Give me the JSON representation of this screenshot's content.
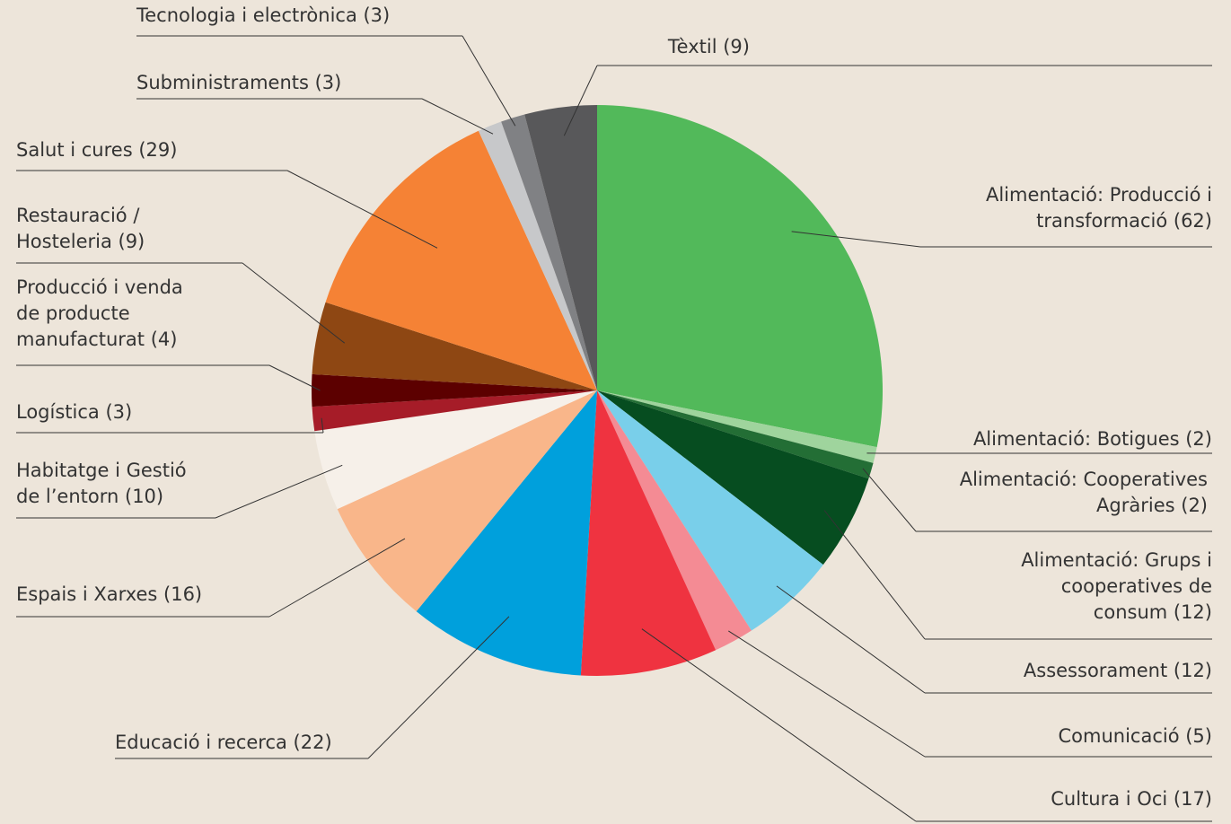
{
  "chart_data": {
    "type": "pie",
    "categories": [
      "Alimentació: Producció i\ntransformació (62)",
      "Alimentació: Botigues (2)",
      "Alimentació: Cooperatives\nAgràries (2)",
      "Alimentació: Grups i\ncooperatives de\nconsum (12)",
      "Assessorament (12)",
      "Comunicació (5)",
      "Cultura i Oci (17)",
      "Educació i recerca (22)",
      "Espais i Xarxes (16)",
      "Habitatge i Gestió\nde l’entorn (10)",
      "Logística (3)",
      "Producció i venda\nde producte\nmanufacturat (4)",
      "Restauració  /\nHosteleria (9)",
      "Salut i cures (29)",
      "Subministraments (3)",
      "Tecnologia i electrònica (3)",
      "Tèxtil (9)"
    ],
    "values": [
      62,
      2,
      2,
      12,
      12,
      5,
      17,
      22,
      16,
      10,
      3,
      4,
      9,
      29,
      3,
      3,
      9
    ],
    "colors": [
      "#52b95a",
      "#9fd49d",
      "#236e35",
      "#064d20",
      "#79cfea",
      "#f48b94",
      "#ef3340",
      "#00a0dc",
      "#f9b68a",
      "#f6f0e9",
      "#a61c28",
      "#5c0000",
      "#8e4713",
      "#f58235",
      "#c7c8ca",
      "#808184",
      "#58585a"
    ]
  }
}
